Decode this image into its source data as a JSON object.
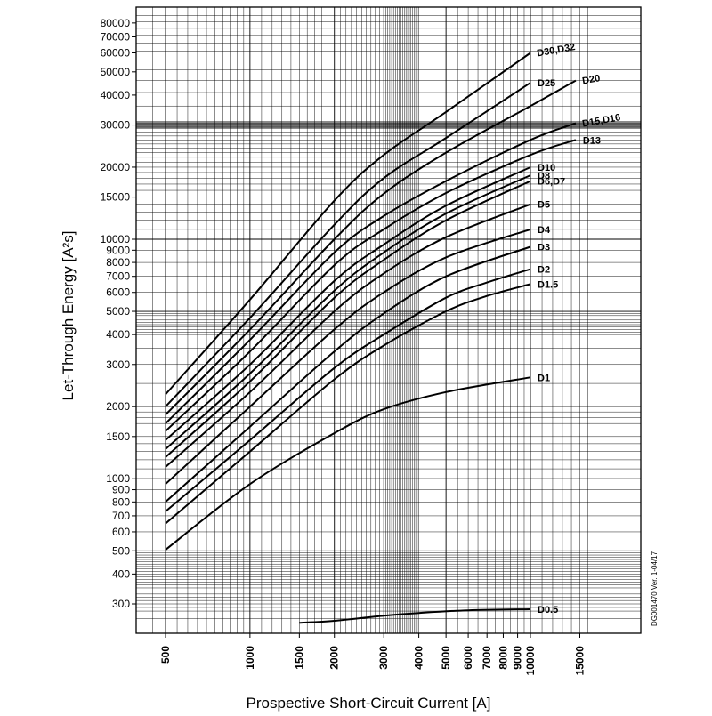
{
  "chart_data": {
    "type": "line",
    "title": "",
    "xlabel": "Prospective Short-Circuit Current [A]",
    "ylabel": "Let-Through Energy [A²s]",
    "x_scale": "log",
    "y_scale": "log",
    "xlim": [
      420,
      16000
    ],
    "ylim": [
      250,
      100000
    ],
    "grid": true,
    "document_id": "DG001470 Ver. 1-04/17",
    "x_ticks": [
      {
        "value": 500,
        "label": "500"
      },
      {
        "value": 1000,
        "label": "1000"
      },
      {
        "value": 1500,
        "label": "1500"
      },
      {
        "value": 2000,
        "label": "2000"
      },
      {
        "value": 3000,
        "label": "3000"
      },
      {
        "value": 4000,
        "label": "4000"
      },
      {
        "value": 5000,
        "label": "5000"
      },
      {
        "value": 6000,
        "label": "6000"
      },
      {
        "value": 7000,
        "label": "7000"
      },
      {
        "value": 8000,
        "label": "8000"
      },
      {
        "value": 9000,
        "label": "9000"
      },
      {
        "value": 10000,
        "label": "10000"
      },
      {
        "value": 15000,
        "label": "15000"
      }
    ],
    "y_ticks": [
      {
        "value": 300,
        "label": "300"
      },
      {
        "value": 400,
        "label": "400"
      },
      {
        "value": 500,
        "label": "500"
      },
      {
        "value": 600,
        "label": "600"
      },
      {
        "value": 700,
        "label": "700"
      },
      {
        "value": 800,
        "label": "800"
      },
      {
        "value": 900,
        "label": "900"
      },
      {
        "value": 1000,
        "label": "1000"
      },
      {
        "value": 1500,
        "label": "1500"
      },
      {
        "value": 2000,
        "label": "2000"
      },
      {
        "value": 3000,
        "label": "3000"
      },
      {
        "value": 4000,
        "label": "4000"
      },
      {
        "value": 5000,
        "label": "5000"
      },
      {
        "value": 6000,
        "label": "6000"
      },
      {
        "value": 7000,
        "label": "7000"
      },
      {
        "value": 8000,
        "label": "8000"
      },
      {
        "value": 9000,
        "label": "9000"
      },
      {
        "value": 10000,
        "label": "10000"
      },
      {
        "value": 15000,
        "label": "15000"
      },
      {
        "value": 20000,
        "label": "20000"
      },
      {
        "value": 30000,
        "label": "30000"
      },
      {
        "value": 40000,
        "label": "40000"
      },
      {
        "value": 50000,
        "label": "50000"
      },
      {
        "value": 60000,
        "label": "60000"
      },
      {
        "value": 70000,
        "label": "70000"
      },
      {
        "value": 80000,
        "label": "80000"
      }
    ],
    "series": [
      {
        "name": "D0.5",
        "x": [
          1500,
          2000,
          3000,
          4000,
          6000,
          10000
        ],
        "y": [
          250,
          255,
          268,
          275,
          282,
          285
        ]
      },
      {
        "name": "D1",
        "x": [
          500,
          1000,
          2000,
          3000,
          5000,
          10000
        ],
        "y": [
          505,
          950,
          1550,
          1950,
          2300,
          2650
        ]
      },
      {
        "name": "D1.5",
        "x": [
          500,
          1000,
          2000,
          3000,
          5000,
          7000,
          10000
        ],
        "y": [
          650,
          1300,
          2600,
          3600,
          5000,
          5800,
          6500
        ]
      },
      {
        "name": "D2",
        "x": [
          500,
          1000,
          2000,
          3000,
          5000,
          7000,
          10000
        ],
        "y": [
          730,
          1450,
          2900,
          4000,
          5700,
          6600,
          7500
        ]
      },
      {
        "name": "D3",
        "x": [
          500,
          1000,
          2000,
          3000,
          5000,
          10000
        ],
        "y": [
          800,
          1650,
          3400,
          4900,
          7000,
          9300
        ]
      },
      {
        "name": "D4",
        "x": [
          500,
          1000,
          2000,
          3000,
          5000,
          10000
        ],
        "y": [
          950,
          2000,
          4200,
          6000,
          8400,
          11000
        ]
      },
      {
        "name": "D5",
        "x": [
          500,
          1000,
          2000,
          3000,
          5000,
          10000
        ],
        "y": [
          1120,
          2300,
          5000,
          7200,
          10200,
          14000
        ]
      },
      {
        "name": "D6,D7",
        "x": [
          500,
          1000,
          2000,
          3000,
          5000,
          10000
        ],
        "y": [
          1230,
          2550,
          5700,
          8200,
          12000,
          17500
        ]
      },
      {
        "name": "D8",
        "x": [
          500,
          1000,
          2000,
          3000,
          5000,
          10000
        ],
        "y": [
          1330,
          2750,
          6100,
          8800,
          12800,
          18500
        ]
      },
      {
        "name": "D10",
        "x": [
          500,
          1000,
          2000,
          3000,
          5000,
          10000
        ],
        "y": [
          1450,
          3000,
          6700,
          9500,
          13800,
          20000
        ]
      },
      {
        "name": "D13",
        "x": [
          500,
          1000,
          2000,
          3000,
          5000,
          10000,
          14500
        ],
        "y": [
          1580,
          3400,
          7800,
          11000,
          15600,
          22500,
          26000
        ]
      },
      {
        "name": "D15,D16",
        "x": [
          500,
          1000,
          2000,
          3000,
          5000,
          10000,
          14500
        ],
        "y": [
          1700,
          3800,
          8800,
          12500,
          17500,
          26000,
          30500
        ]
      },
      {
        "name": "D20",
        "x": [
          500,
          1000,
          2000,
          3000,
          5000,
          10000,
          14500
        ],
        "y": [
          1850,
          4200,
          10000,
          15500,
          23000,
          36000,
          46000
        ]
      },
      {
        "name": "D25",
        "x": [
          500,
          1000,
          2000,
          3000,
          5000,
          10000
        ],
        "y": [
          2000,
          4700,
          11500,
          18000,
          26500,
          45000
        ]
      },
      {
        "name": "D30,D32",
        "x": [
          500,
          1000,
          2000,
          3000,
          5000,
          10000
        ],
        "y": [
          2250,
          5600,
          14500,
          22500,
          34000,
          60000
        ]
      }
    ]
  }
}
